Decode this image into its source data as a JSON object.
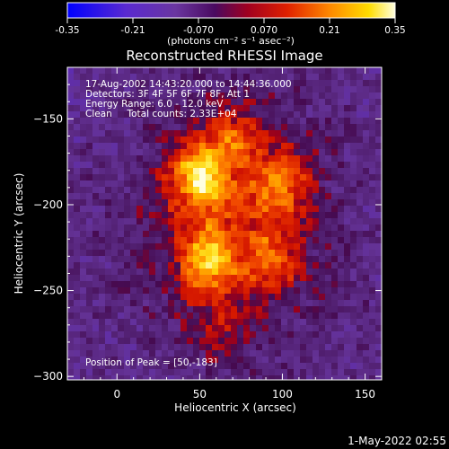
{
  "colorbar": {
    "ticks": [
      "-0.35",
      "-0.21",
      "-0.070",
      "0.070",
      "0.21",
      "0.35"
    ],
    "min": -0.35,
    "max": 0.35,
    "unit_label": "(photons cm⁻² s⁻¹ asec⁻²)"
  },
  "chart_data": {
    "type": "heatmap",
    "title": "Reconstructed RHESSI Image",
    "xlabel": "Heliocentric X (arcsec)",
    "ylabel": "Heliocentric Y (arcsec)",
    "xlim": [
      -30,
      160
    ],
    "ylim": [
      -302,
      -120
    ],
    "x_ticks": [
      0,
      50,
      100,
      150
    ],
    "y_ticks": [
      -150,
      -200,
      -250,
      -300
    ],
    "annotations": [
      "17-Aug-2002 14:43:20.000 to 14:44:36.000",
      "Detectors: 3F 4F 5F 6F 7F 8F, Att 1",
      "Energy Range: 6.0 - 12.0 keV",
      "Clean     Total counts: 2.33E+04"
    ],
    "peak_label": "Position of Peak = [50,-183]",
    "peak": [
      50,
      -183
    ],
    "sources": [
      {
        "x": 50,
        "y": -183,
        "peak": 0.35
      },
      {
        "x": 55,
        "y": -232,
        "peak": 0.3
      },
      {
        "x": 100,
        "y": -188,
        "peak": 0.22
      },
      {
        "x": 72,
        "y": -160,
        "peak": 0.2
      },
      {
        "x": 95,
        "y": -232,
        "peak": 0.17
      },
      {
        "x": 62,
        "y": -275,
        "peak": 0.14
      }
    ]
  },
  "timestamp": "1-May-2022 02:55"
}
